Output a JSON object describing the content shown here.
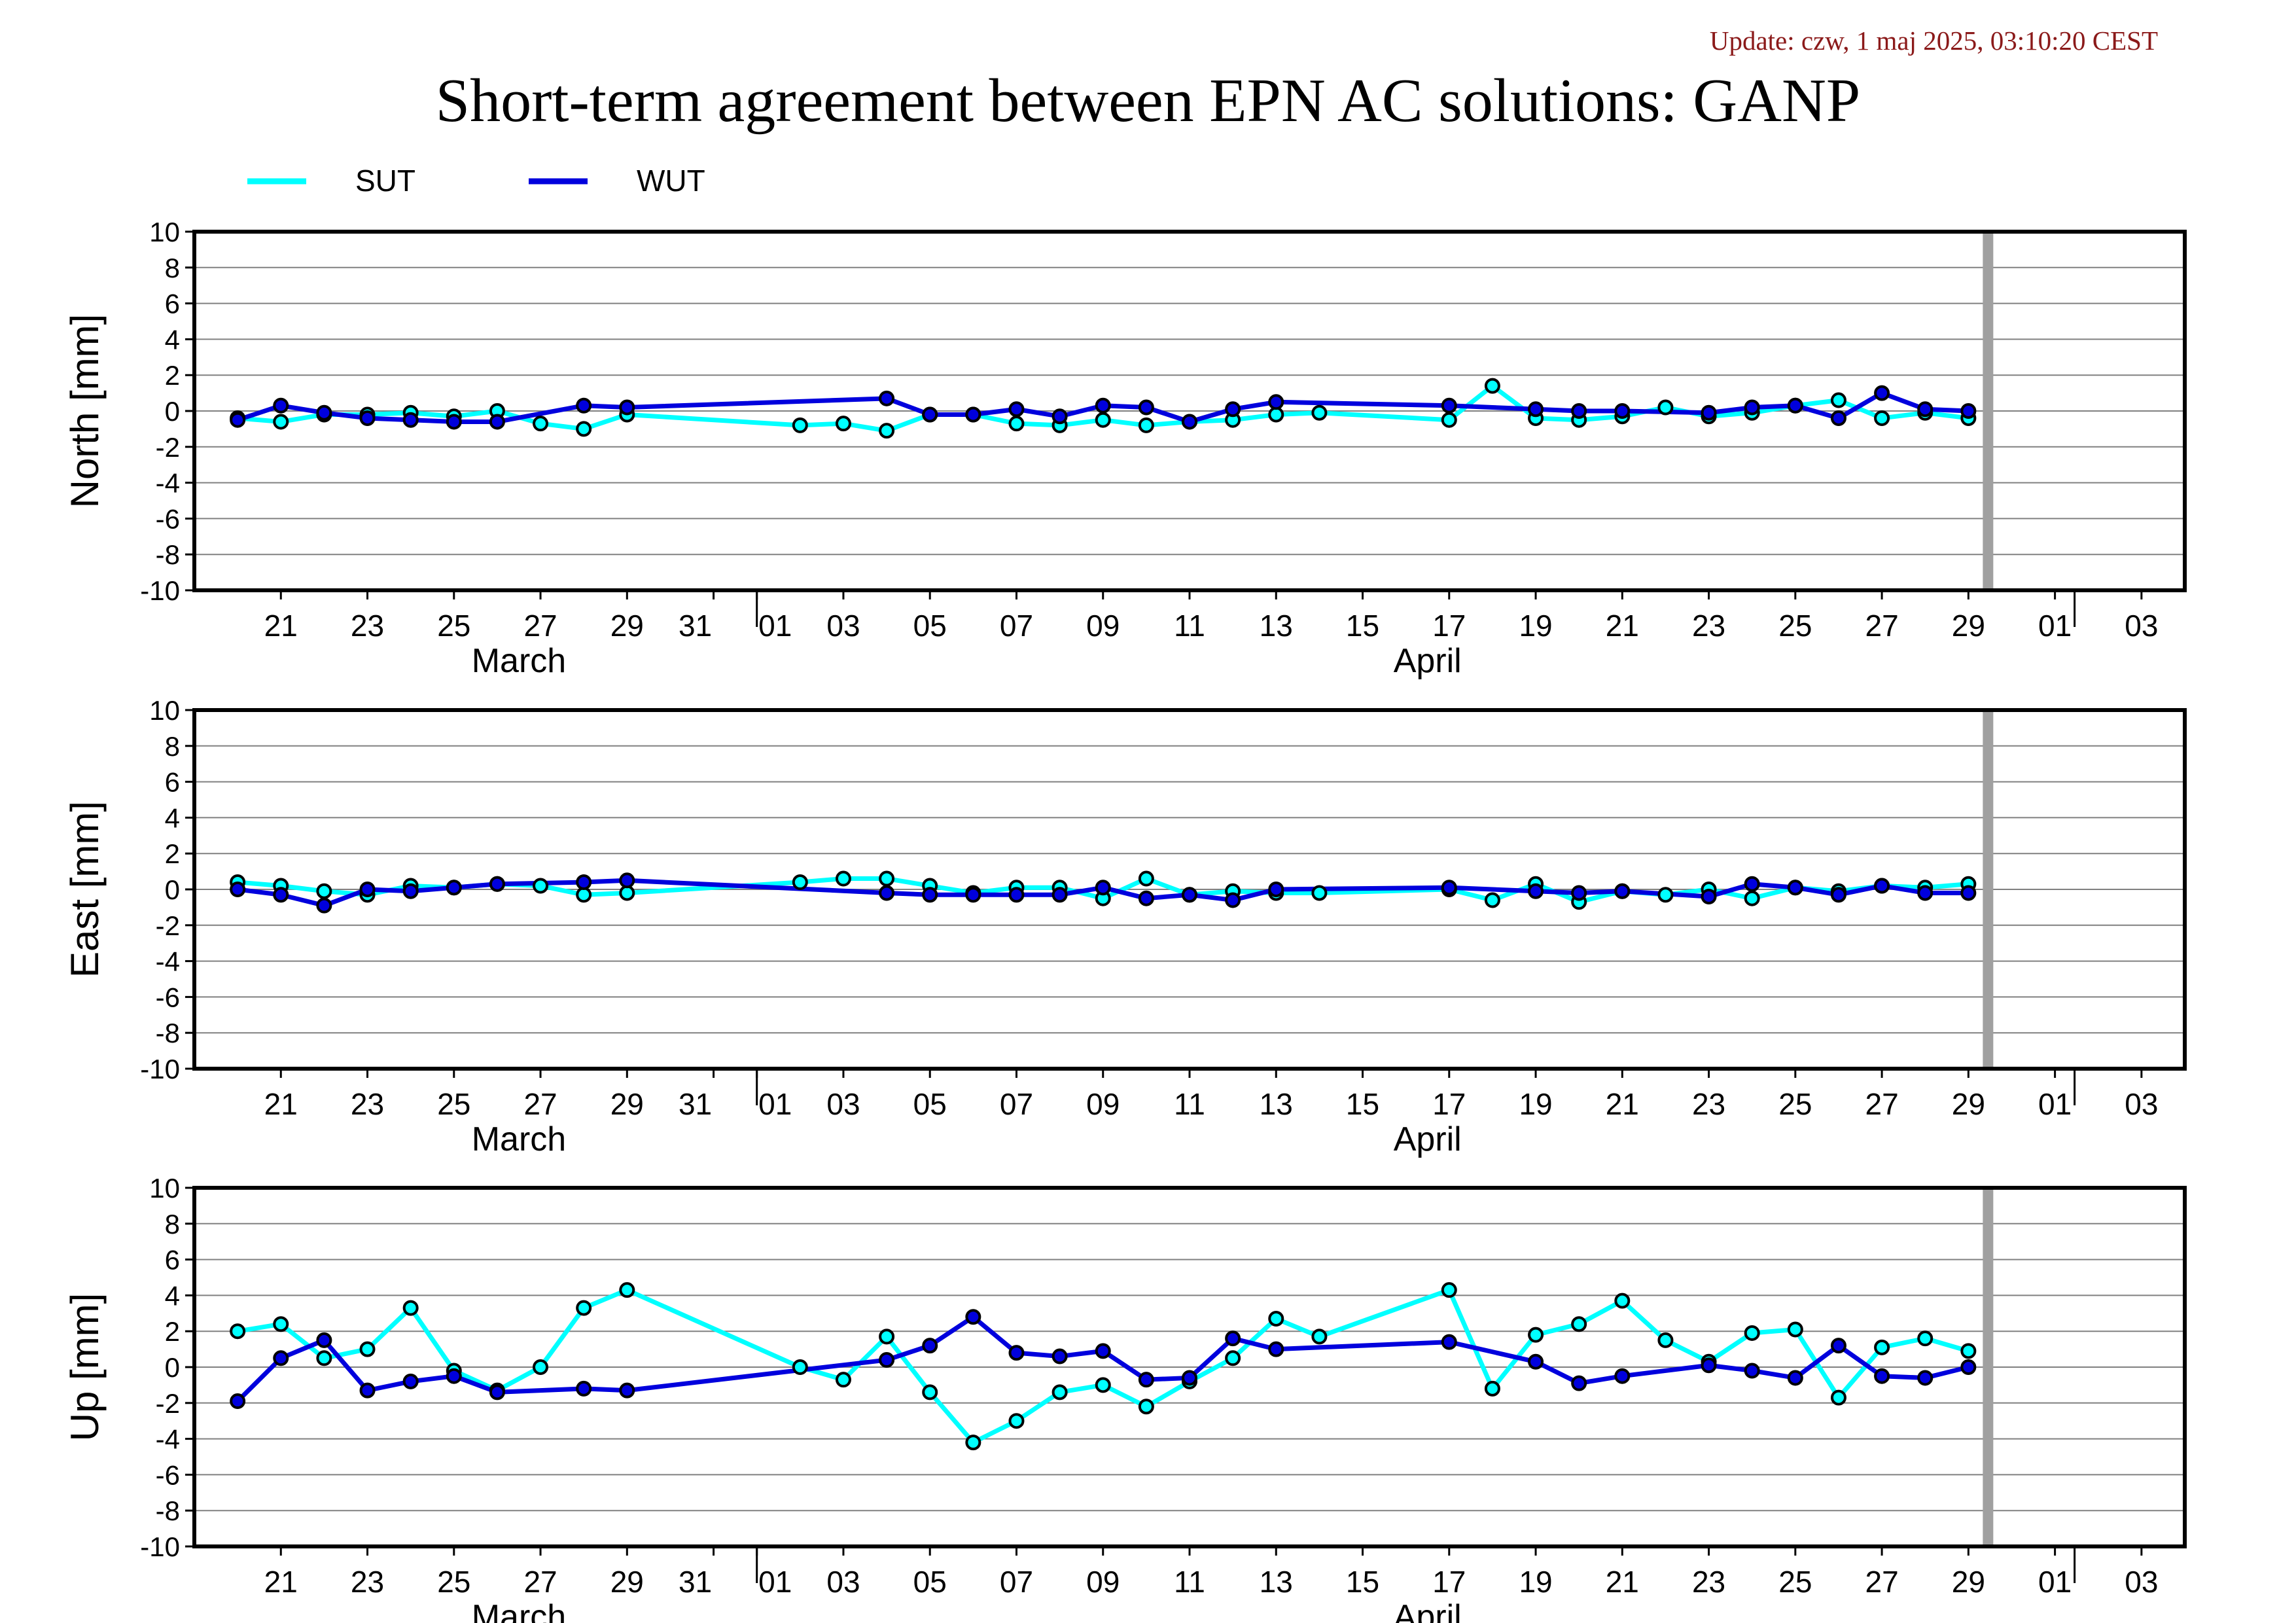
{
  "header": {
    "update_text": "Update: czw, 1 maj 2025, 03:10:20 CEST",
    "title": "Short-term agreement between EPN AC solutions: GANP"
  },
  "colors": {
    "SUT": "#00ffff",
    "WUT": "#0000dd",
    "grid": "#808080",
    "marker_edge": "#000000",
    "today_bar": "#a0a0a0"
  },
  "chart_data": {
    "type": "line",
    "legend": {
      "position": "top-left",
      "entries": [
        "SUT",
        "WUT"
      ]
    },
    "x_axis": {
      "range": [
        "2025-03-19",
        "2025-05-04"
      ],
      "tick_labels": [
        "21",
        "23",
        "25",
        "27",
        "29",
        "31",
        "01",
        "03",
        "05",
        "07",
        "09",
        "11",
        "13",
        "15",
        "17",
        "19",
        "21",
        "23",
        "25",
        "27",
        "29",
        "01",
        "03"
      ],
      "month_labels": [
        "March",
        "April"
      ],
      "today_marker": "2025-04-29"
    },
    "panels": [
      {
        "ylabel": "North [mm]",
        "ylim": [
          -10,
          10
        ],
        "yticks": [
          10,
          8,
          6,
          4,
          2,
          0,
          -2,
          -4,
          -6,
          -8,
          -10
        ],
        "series": [
          {
            "name": "SUT",
            "points": [
              [
                "2025-03-20",
                -0.4
              ],
              [
                "2025-03-21",
                -0.6
              ],
              [
                "2025-03-22",
                -0.2
              ],
              [
                "2025-03-23",
                -0.2
              ],
              [
                "2025-03-24",
                -0.1
              ],
              [
                "2025-03-25",
                -0.3
              ],
              [
                "2025-03-26",
                0.0
              ],
              [
                "2025-03-27",
                -0.7
              ],
              [
                "2025-03-28",
                -1.0
              ],
              [
                "2025-03-29",
                -0.2
              ],
              [
                "2025-04-02",
                -0.8
              ],
              [
                "2025-04-03",
                -0.7
              ],
              [
                "2025-04-04",
                -1.1
              ],
              [
                "2025-04-05",
                -0.2
              ],
              [
                "2025-04-06",
                -0.2
              ],
              [
                "2025-04-07",
                -0.7
              ],
              [
                "2025-04-08",
                -0.8
              ],
              [
                "2025-04-09",
                -0.5
              ],
              [
                "2025-04-10",
                -0.8
              ],
              [
                "2025-04-11",
                -0.6
              ],
              [
                "2025-04-12",
                -0.5
              ],
              [
                "2025-04-13",
                -0.2
              ],
              [
                "2025-04-14",
                -0.1
              ],
              [
                "2025-04-17",
                -0.5
              ],
              [
                "2025-04-18",
                1.4
              ],
              [
                "2025-04-19",
                -0.4
              ],
              [
                "2025-04-20",
                -0.5
              ],
              [
                "2025-04-21",
                -0.3
              ],
              [
                "2025-04-22",
                0.2
              ],
              [
                "2025-04-23",
                -0.3
              ],
              [
                "2025-04-24",
                -0.1
              ],
              [
                "2025-04-25",
                0.3
              ],
              [
                "2025-04-26",
                0.6
              ],
              [
                "2025-04-27",
                -0.4
              ],
              [
                "2025-04-28",
                -0.1
              ],
              [
                "2025-04-29",
                -0.4
              ]
            ]
          },
          {
            "name": "WUT",
            "points": [
              [
                "2025-03-20",
                -0.5
              ],
              [
                "2025-03-21",
                0.3
              ],
              [
                "2025-03-22",
                -0.1
              ],
              [
                "2025-03-23",
                -0.4
              ],
              [
                "2025-03-24",
                -0.5
              ],
              [
                "2025-03-25",
                -0.6
              ],
              [
                "2025-03-26",
                -0.6
              ],
              [
                "2025-03-28",
                0.3
              ],
              [
                "2025-03-29",
                0.2
              ],
              [
                "2025-04-04",
                0.7
              ],
              [
                "2025-04-05",
                -0.2
              ],
              [
                "2025-04-06",
                -0.2
              ],
              [
                "2025-04-07",
                0.1
              ],
              [
                "2025-04-08",
                -0.3
              ],
              [
                "2025-04-09",
                0.3
              ],
              [
                "2025-04-10",
                0.2
              ],
              [
                "2025-04-11",
                -0.6
              ],
              [
                "2025-04-12",
                0.1
              ],
              [
                "2025-04-13",
                0.5
              ],
              [
                "2025-04-17",
                0.3
              ],
              [
                "2025-04-19",
                0.1
              ],
              [
                "2025-04-20",
                0.0
              ],
              [
                "2025-04-21",
                0.0
              ],
              [
                "2025-04-23",
                -0.1
              ],
              [
                "2025-04-24",
                0.2
              ],
              [
                "2025-04-25",
                0.3
              ],
              [
                "2025-04-26",
                -0.4
              ],
              [
                "2025-04-27",
                1.0
              ],
              [
                "2025-04-28",
                0.1
              ],
              [
                "2025-04-29",
                0.0
              ]
            ]
          }
        ]
      },
      {
        "ylabel": "East [mm]",
        "ylim": [
          -10,
          10
        ],
        "yticks": [
          10,
          8,
          6,
          4,
          2,
          0,
          -2,
          -4,
          -6,
          -8,
          -10
        ],
        "series": [
          {
            "name": "SUT",
            "points": [
              [
                "2025-03-20",
                0.4
              ],
              [
                "2025-03-21",
                0.2
              ],
              [
                "2025-03-22",
                -0.1
              ],
              [
                "2025-03-23",
                -0.3
              ],
              [
                "2025-03-24",
                0.2
              ],
              [
                "2025-03-25",
                0.1
              ],
              [
                "2025-03-26",
                0.3
              ],
              [
                "2025-03-27",
                0.2
              ],
              [
                "2025-03-28",
                -0.3
              ],
              [
                "2025-03-29",
                -0.2
              ],
              [
                "2025-04-02",
                0.4
              ],
              [
                "2025-04-03",
                0.6
              ],
              [
                "2025-04-04",
                0.6
              ],
              [
                "2025-04-05",
                0.2
              ],
              [
                "2025-04-06",
                -0.2
              ],
              [
                "2025-04-07",
                0.1
              ],
              [
                "2025-04-08",
                0.1
              ],
              [
                "2025-04-09",
                -0.5
              ],
              [
                "2025-04-10",
                0.6
              ],
              [
                "2025-04-11",
                -0.3
              ],
              [
                "2025-04-12",
                -0.1
              ],
              [
                "2025-04-13",
                -0.2
              ],
              [
                "2025-04-14",
                -0.2
              ],
              [
                "2025-04-17",
                0.0
              ],
              [
                "2025-04-18",
                -0.6
              ],
              [
                "2025-04-19",
                0.3
              ],
              [
                "2025-04-20",
                -0.7
              ],
              [
                "2025-04-21",
                -0.1
              ],
              [
                "2025-04-22",
                -0.3
              ],
              [
                "2025-04-23",
                0.0
              ],
              [
                "2025-04-24",
                -0.5
              ],
              [
                "2025-04-25",
                0.1
              ],
              [
                "2025-04-26",
                -0.1
              ],
              [
                "2025-04-27",
                0.2
              ],
              [
                "2025-04-28",
                0.1
              ],
              [
                "2025-04-29",
                0.3
              ]
            ]
          },
          {
            "name": "WUT",
            "points": [
              [
                "2025-03-20",
                0.0
              ],
              [
                "2025-03-21",
                -0.3
              ],
              [
                "2025-03-22",
                -0.9
              ],
              [
                "2025-03-23",
                0.0
              ],
              [
                "2025-03-24",
                -0.1
              ],
              [
                "2025-03-25",
                0.1
              ],
              [
                "2025-03-26",
                0.3
              ],
              [
                "2025-03-28",
                0.4
              ],
              [
                "2025-03-29",
                0.5
              ],
              [
                "2025-04-04",
                -0.2
              ],
              [
                "2025-04-05",
                -0.3
              ],
              [
                "2025-04-06",
                -0.3
              ],
              [
                "2025-04-07",
                -0.3
              ],
              [
                "2025-04-08",
                -0.3
              ],
              [
                "2025-04-09",
                0.1
              ],
              [
                "2025-04-10",
                -0.5
              ],
              [
                "2025-04-11",
                -0.3
              ],
              [
                "2025-04-12",
                -0.6
              ],
              [
                "2025-04-13",
                0.0
              ],
              [
                "2025-04-17",
                0.1
              ],
              [
                "2025-04-19",
                -0.1
              ],
              [
                "2025-04-20",
                -0.2
              ],
              [
                "2025-04-21",
                -0.1
              ],
              [
                "2025-04-23",
                -0.4
              ],
              [
                "2025-04-24",
                0.3
              ],
              [
                "2025-04-25",
                0.1
              ],
              [
                "2025-04-26",
                -0.3
              ],
              [
                "2025-04-27",
                0.2
              ],
              [
                "2025-04-28",
                -0.2
              ],
              [
                "2025-04-29",
                -0.2
              ]
            ]
          }
        ]
      },
      {
        "ylabel": "Up [mm]",
        "ylim": [
          -10,
          10
        ],
        "yticks": [
          10,
          8,
          6,
          4,
          2,
          0,
          -2,
          -4,
          -6,
          -8,
          -10
        ],
        "series": [
          {
            "name": "SUT",
            "points": [
              [
                "2025-03-20",
                2.0
              ],
              [
                "2025-03-21",
                2.4
              ],
              [
                "2025-03-22",
                0.5
              ],
              [
                "2025-03-23",
                1.0
              ],
              [
                "2025-03-24",
                3.3
              ],
              [
                "2025-03-25",
                -0.2
              ],
              [
                "2025-03-26",
                -1.3
              ],
              [
                "2025-03-27",
                0.0
              ],
              [
                "2025-03-28",
                3.3
              ],
              [
                "2025-03-29",
                4.3
              ],
              [
                "2025-04-02",
                0.0
              ],
              [
                "2025-04-03",
                -0.7
              ],
              [
                "2025-04-04",
                1.7
              ],
              [
                "2025-04-05",
                -1.4
              ],
              [
                "2025-04-06",
                -4.2
              ],
              [
                "2025-04-07",
                -3.0
              ],
              [
                "2025-04-08",
                -1.4
              ],
              [
                "2025-04-09",
                -1.0
              ],
              [
                "2025-04-10",
                -2.2
              ],
              [
                "2025-04-11",
                -0.8
              ],
              [
                "2025-04-12",
                0.5
              ],
              [
                "2025-04-13",
                2.7
              ],
              [
                "2025-04-14",
                1.7
              ],
              [
                "2025-04-17",
                4.3
              ],
              [
                "2025-04-18",
                -1.2
              ],
              [
                "2025-04-19",
                1.8
              ],
              [
                "2025-04-20",
                2.4
              ],
              [
                "2025-04-21",
                3.7
              ],
              [
                "2025-04-22",
                1.5
              ],
              [
                "2025-04-23",
                0.3
              ],
              [
                "2025-04-24",
                1.9
              ],
              [
                "2025-04-25",
                2.1
              ],
              [
                "2025-04-26",
                -1.7
              ],
              [
                "2025-04-27",
                1.1
              ],
              [
                "2025-04-28",
                1.6
              ],
              [
                "2025-04-29",
                0.9
              ]
            ]
          },
          {
            "name": "WUT",
            "points": [
              [
                "2025-03-20",
                -1.9
              ],
              [
                "2025-03-21",
                0.5
              ],
              [
                "2025-03-22",
                1.5
              ],
              [
                "2025-03-23",
                -1.3
              ],
              [
                "2025-03-24",
                -0.8
              ],
              [
                "2025-03-25",
                -0.5
              ],
              [
                "2025-03-26",
                -1.4
              ],
              [
                "2025-03-28",
                -1.2
              ],
              [
                "2025-03-29",
                -1.3
              ],
              [
                "2025-04-04",
                0.4
              ],
              [
                "2025-04-05",
                1.2
              ],
              [
                "2025-04-06",
                2.8
              ],
              [
                "2025-04-07",
                0.8
              ],
              [
                "2025-04-08",
                0.6
              ],
              [
                "2025-04-09",
                0.9
              ],
              [
                "2025-04-10",
                -0.7
              ],
              [
                "2025-04-11",
                -0.6
              ],
              [
                "2025-04-12",
                1.6
              ],
              [
                "2025-04-13",
                1.0
              ],
              [
                "2025-04-17",
                1.4
              ],
              [
                "2025-04-19",
                0.3
              ],
              [
                "2025-04-20",
                -0.9
              ],
              [
                "2025-04-21",
                -0.5
              ],
              [
                "2025-04-23",
                0.1
              ],
              [
                "2025-04-24",
                -0.2
              ],
              [
                "2025-04-25",
                -0.6
              ],
              [
                "2025-04-26",
                1.2
              ],
              [
                "2025-04-27",
                -0.5
              ],
              [
                "2025-04-28",
                -0.6
              ],
              [
                "2025-04-29",
                0.0
              ]
            ]
          }
        ]
      }
    ]
  }
}
